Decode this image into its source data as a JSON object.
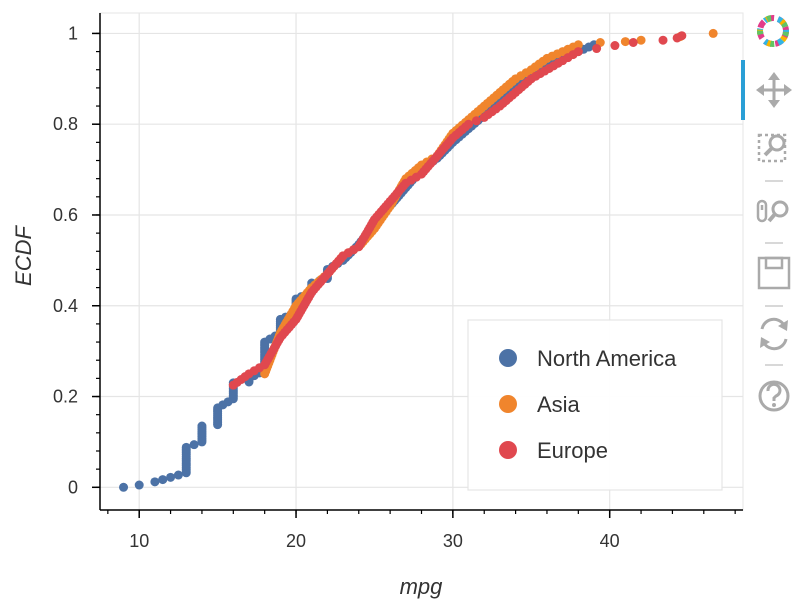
{
  "chart_data": {
    "type": "scatter",
    "title": "",
    "xlabel": "mpg",
    "ylabel": "ECDF",
    "xlim": [
      7.5,
      48.5
    ],
    "ylim": [
      -0.05,
      1.045
    ],
    "xticks": [
      10,
      20,
      30,
      40
    ],
    "yticks": [
      0,
      0.2,
      0.4,
      0.6,
      0.8,
      1
    ],
    "ytick_labels": [
      "0",
      "0.2",
      "0.4",
      "0.6",
      "0.8",
      "1"
    ],
    "grid": true,
    "legend_position": "bottom-right",
    "series": [
      {
        "name": "North America",
        "color": "#4c72a6",
        "cdf": [
          [
            9,
            0
          ],
          [
            10,
            0.005
          ],
          [
            11,
            0.012
          ],
          [
            12,
            0.022
          ],
          [
            13,
            0.032
          ],
          [
            13,
            0.088
          ],
          [
            14,
            0.1
          ],
          [
            14,
            0.135
          ],
          [
            15,
            0.138
          ],
          [
            15,
            0.175
          ],
          [
            16,
            0.195
          ],
          [
            16,
            0.23
          ],
          [
            17,
            0.232
          ],
          [
            17,
            0.24
          ],
          [
            18,
            0.258
          ],
          [
            18,
            0.32
          ],
          [
            19,
            0.34
          ],
          [
            19,
            0.37
          ],
          [
            20,
            0.385
          ],
          [
            20,
            0.415
          ],
          [
            21,
            0.43
          ],
          [
            21,
            0.45
          ],
          [
            22,
            0.46
          ],
          [
            22,
            0.48
          ],
          [
            23,
            0.5
          ],
          [
            24,
            0.535
          ],
          [
            25,
            0.58
          ],
          [
            26,
            0.62
          ],
          [
            27,
            0.66
          ],
          [
            28,
            0.7
          ],
          [
            29,
            0.725
          ],
          [
            30,
            0.76
          ],
          [
            31,
            0.79
          ],
          [
            32,
            0.82
          ],
          [
            33,
            0.855
          ],
          [
            34,
            0.89
          ],
          [
            36,
            0.93
          ],
          [
            38,
            0.96
          ],
          [
            39,
            0.975
          ]
        ]
      },
      {
        "name": "Asia",
        "color": "#f0852d",
        "cdf": [
          [
            18,
            0.25
          ],
          [
            19,
            0.34
          ],
          [
            20,
            0.4
          ],
          [
            21,
            0.44
          ],
          [
            22,
            0.47
          ],
          [
            23,
            0.51
          ],
          [
            24,
            0.53
          ],
          [
            25,
            0.57
          ],
          [
            26,
            0.62
          ],
          [
            27,
            0.68
          ],
          [
            28,
            0.71
          ],
          [
            29,
            0.73
          ],
          [
            30,
            0.78
          ],
          [
            31,
            0.81
          ],
          [
            32,
            0.84
          ],
          [
            33,
            0.87
          ],
          [
            34,
            0.9
          ],
          [
            35,
            0.92
          ],
          [
            36,
            0.945
          ],
          [
            37,
            0.96
          ],
          [
            38,
            0.975
          ],
          [
            39.4,
            0.98
          ],
          [
            41,
            0.982
          ],
          [
            42,
            0.985
          ],
          [
            44.5,
            0.993
          ],
          [
            46.6,
            1.0
          ]
        ]
      },
      {
        "name": "Europe",
        "color": "#e0484f",
        "cdf": [
          [
            16,
            0.225
          ],
          [
            17,
            0.25
          ],
          [
            18,
            0.27
          ],
          [
            19,
            0.33
          ],
          [
            20,
            0.37
          ],
          [
            21,
            0.43
          ],
          [
            22,
            0.47
          ],
          [
            23,
            0.51
          ],
          [
            24,
            0.53
          ],
          [
            25,
            0.59
          ],
          [
            26,
            0.63
          ],
          [
            27,
            0.67
          ],
          [
            28,
            0.69
          ],
          [
            29,
            0.73
          ],
          [
            30,
            0.77
          ],
          [
            31,
            0.8
          ],
          [
            32,
            0.815
          ],
          [
            33,
            0.84
          ],
          [
            34,
            0.87
          ],
          [
            35,
            0.9
          ],
          [
            37,
            0.94
          ],
          [
            38,
            0.96
          ],
          [
            41.5,
            0.98
          ],
          [
            43.4,
            0.985
          ],
          [
            44.3,
            0.99
          ],
          [
            44.6,
            0.995
          ]
        ]
      }
    ]
  },
  "toolbar": {
    "logo": "bokeh-logo",
    "active_accent": "#2a9fd6",
    "tools": [
      "pan-icon",
      "box-zoom-icon",
      "wheel-zoom-icon",
      "save-icon",
      "reset-icon",
      "help-icon"
    ]
  }
}
